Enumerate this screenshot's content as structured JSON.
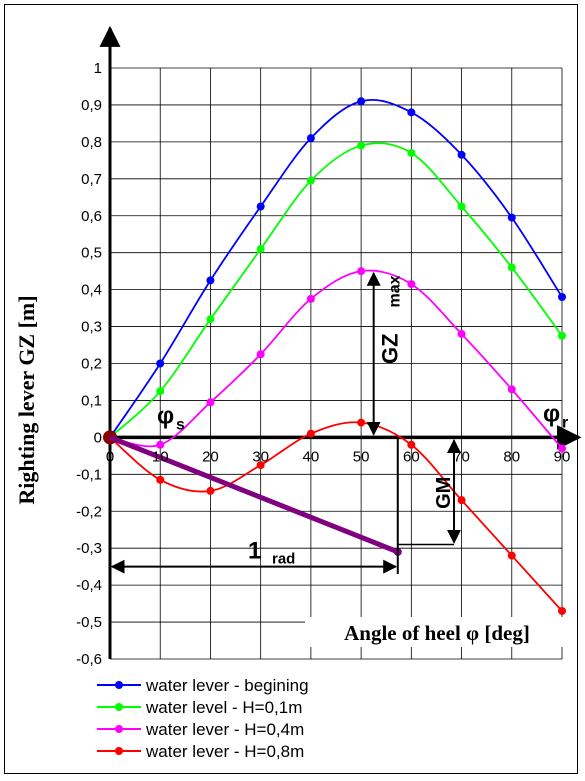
{
  "chart_data": {
    "type": "line",
    "xlabel": "Angle of heel φ [deg]",
    "ylabel": "Righting lever GZ [m]",
    "xlim": [
      0,
      90
    ],
    "ylim": [
      -0.6,
      1.0
    ],
    "x_ticks": [
      "0",
      "10",
      "20",
      "30",
      "40",
      "50",
      "60",
      "70",
      "80",
      "90"
    ],
    "y_ticks": [
      "-0,6",
      "-0,5",
      "-0,4",
      "-0,3",
      "-0,2",
      "-0,1",
      "0",
      "0,1",
      "0,2",
      "0,3",
      "0,4",
      "0,5",
      "0,6",
      "0,7",
      "0,8",
      "0,9",
      "1"
    ],
    "grid": true,
    "legend_position": "bottom",
    "x": [
      0,
      10,
      20,
      30,
      40,
      50,
      60,
      70,
      80,
      90
    ],
    "series": [
      {
        "name": "water lever - begining",
        "color": "#0000ff",
        "values": [
          0,
          0.2,
          0.425,
          0.625,
          0.81,
          0.91,
          0.88,
          0.765,
          0.595,
          0.38
        ]
      },
      {
        "name": "water level - H=0,1m",
        "color": "#00ff00",
        "values": [
          0,
          0.125,
          0.32,
          0.51,
          0.695,
          0.79,
          0.77,
          0.625,
          0.46,
          0.275
        ]
      },
      {
        "name": "water lever - H=0,4m",
        "color": "#ff00ff",
        "values": [
          0,
          -0.02,
          0.095,
          0.225,
          0.375,
          0.45,
          0.415,
          0.28,
          0.13,
          -0.03
        ]
      },
      {
        "name": "water lever - H=0,8m",
        "color": "#ff0000",
        "values": [
          0,
          -0.115,
          -0.145,
          -0.075,
          0.01,
          0.04,
          -0.02,
          -0.17,
          -0.32,
          -0.47
        ]
      }
    ],
    "annotations": {
      "gz_max_main": "GZ",
      "gz_max_sub": "max",
      "gm": "GM",
      "one_rad_main": "1",
      "one_rad_sub": "rad",
      "phi_s_main": "φ",
      "phi_s_sub": "s",
      "phi_r_main": "φ",
      "phi_r_sub": "r"
    },
    "gm_line_color": "#800080"
  }
}
